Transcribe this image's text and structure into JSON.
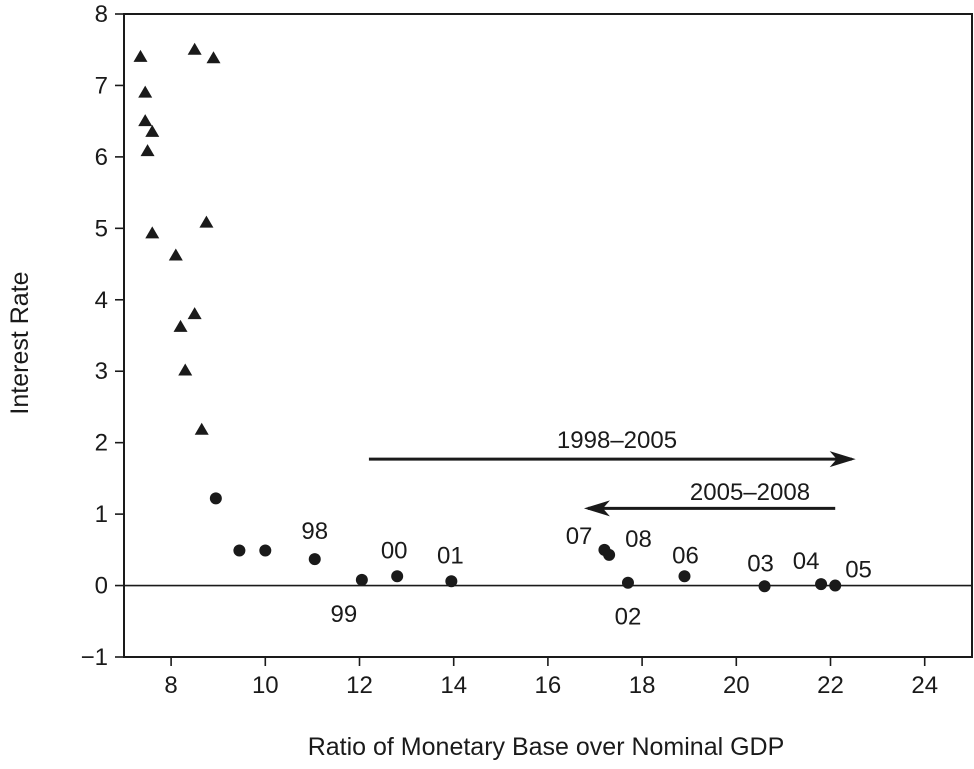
{
  "chart_data": {
    "type": "scatter",
    "title": "",
    "xlabel": "Ratio of Monetary Base over Nominal GDP",
    "ylabel": "Interest Rate",
    "xlim": [
      7,
      25
    ],
    "ylim": [
      -1,
      8
    ],
    "x_ticks": [
      "8",
      "10",
      "12",
      "14",
      "16",
      "18",
      "20",
      "22",
      "24"
    ],
    "y_ticks": [
      "−1",
      "0",
      "1",
      "2",
      "3",
      "4",
      "5",
      "6",
      "7",
      "8"
    ],
    "grid": false,
    "legend": "none",
    "zero_line": true,
    "series": [
      {
        "marker": "triangle",
        "color": "#1a1a1a",
        "points": [
          {
            "x": 7.35,
            "y": 7.4
          },
          {
            "x": 8.5,
            "y": 7.5
          },
          {
            "x": 8.9,
            "y": 7.38
          },
          {
            "x": 7.45,
            "y": 6.9
          },
          {
            "x": 7.45,
            "y": 6.5
          },
          {
            "x": 7.6,
            "y": 6.35
          },
          {
            "x": 7.5,
            "y": 6.08
          },
          {
            "x": 8.75,
            "y": 5.08
          },
          {
            "x": 7.6,
            "y": 4.93
          },
          {
            "x": 8.1,
            "y": 4.62
          },
          {
            "x": 8.5,
            "y": 3.8
          },
          {
            "x": 8.2,
            "y": 3.62
          },
          {
            "x": 8.3,
            "y": 3.01
          },
          {
            "x": 8.65,
            "y": 2.18
          }
        ]
      },
      {
        "marker": "circle",
        "color": "#1a1a1a",
        "points": [
          {
            "x": 8.95,
            "y": 1.22,
            "label": ""
          },
          {
            "x": 9.45,
            "y": 0.49,
            "label": ""
          },
          {
            "x": 10.0,
            "y": 0.49,
            "label": ""
          },
          {
            "x": 11.05,
            "y": 0.37,
            "label": "98"
          },
          {
            "x": 12.05,
            "y": 0.08,
            "label": "99"
          },
          {
            "x": 12.8,
            "y": 0.13,
            "label": "00"
          },
          {
            "x": 13.95,
            "y": 0.06,
            "label": "01"
          },
          {
            "x": 17.2,
            "y": 0.5,
            "label": "07"
          },
          {
            "x": 17.3,
            "y": 0.43,
            "label": "08"
          },
          {
            "x": 17.7,
            "y": 0.04,
            "label": "02"
          },
          {
            "x": 18.9,
            "y": 0.13,
            "label": "06"
          },
          {
            "x": 20.6,
            "y": -0.01,
            "label": "03"
          },
          {
            "x": 21.8,
            "y": 0.02,
            "label": "04"
          },
          {
            "x": 22.1,
            "y": 0.0,
            "label": "05"
          }
        ]
      }
    ],
    "annotations": [
      {
        "text": "1998–2005",
        "arrow_from": [
          12.2,
          1.77
        ],
        "arrow_to": [
          22.45,
          1.77
        ]
      },
      {
        "text": "2005–2008",
        "arrow_from": [
          22.1,
          1.08
        ],
        "arrow_to": [
          16.85,
          1.08
        ]
      }
    ]
  }
}
